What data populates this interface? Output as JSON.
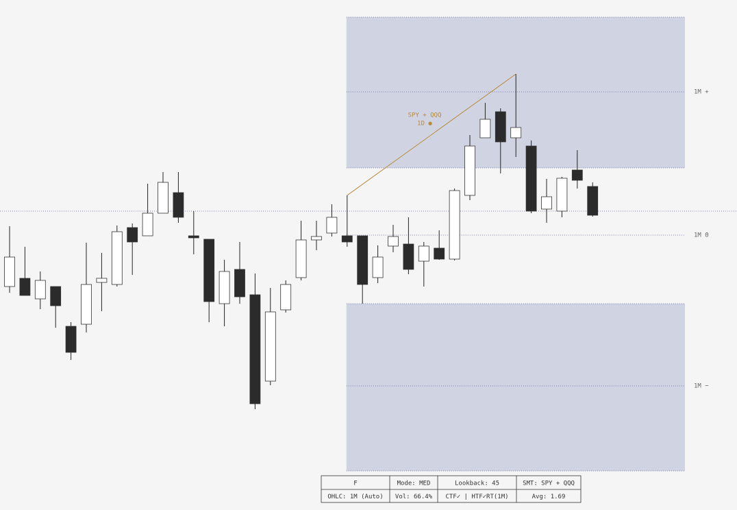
{
  "chart_data": {
    "type": "candlestick",
    "open": [
      326,
      338,
      308,
      326,
      268,
      271,
      332,
      329,
      412,
      400,
      433,
      463,
      400,
      395,
      301,
      351,
      314,
      188,
      292,
      339,
      394,
      404,
      400,
      400,
      339,
      385,
      388,
      363,
      382,
      366,
      459,
      543,
      581,
      543,
      531,
      439,
      436,
      496,
      472
    ],
    "high": [
      414,
      384,
      348,
      326,
      274,
      390,
      375,
      415,
      418,
      476,
      493,
      493,
      436,
      395,
      365,
      391,
      345,
      324,
      335,
      422,
      422,
      446,
      459,
      400,
      386,
      416,
      427,
      391,
      408,
      469,
      547,
      594,
      586,
      636,
      539,
      483,
      486,
      525,
      478
    ],
    "low": [
      317,
      313,
      293,
      266,
      219,
      259,
      290,
      326,
      343,
      400,
      433,
      419,
      373,
      274,
      268,
      301,
      147,
      182,
      288,
      335,
      379,
      399,
      384,
      301,
      331,
      376,
      344,
      326,
      365,
      364,
      452,
      543,
      491,
      515,
      433,
      419,
      427,
      469,
      428
    ],
    "close": [
      369,
      313,
      335,
      298,
      230,
      329,
      338,
      406,
      391,
      433,
      478,
      427,
      397,
      304,
      348,
      311,
      155,
      289,
      329,
      394,
      399,
      427,
      391,
      329,
      369,
      399,
      351,
      385,
      366,
      466,
      531,
      570,
      537,
      558,
      436,
      457,
      484,
      481,
      430
    ],
    "ylim": [
      0,
      744
    ],
    "zones": [
      {
        "from": 499,
        "to": 719
      },
      {
        "from": 57,
        "to": 301
      }
    ],
    "price_line": 436,
    "levels": [
      {
        "value": 610,
        "label": "1M +"
      },
      {
        "value": 401,
        "label": "1M Θ"
      },
      {
        "value": 181,
        "label": "1M −"
      }
    ],
    "annotation": {
      "text": "SPY + QQQ",
      "subtext": "1D ●"
    },
    "colors": {
      "up": "#ffffff",
      "down": "#2b2b2b",
      "zone": "#d0d4e2",
      "level": "#5a5aa0",
      "annotation": "#b8893a"
    }
  },
  "table": {
    "rows": [
      [
        "F",
        "Mode: MED",
        "Lookback: 45",
        "SMT: SPY + QQQ"
      ],
      [
        "OHLC: 1M (Auto)",
        "Vol: 66.4%",
        "CTF✓ | HTF✓RT(1M)",
        "Avg: 1.69"
      ]
    ]
  }
}
